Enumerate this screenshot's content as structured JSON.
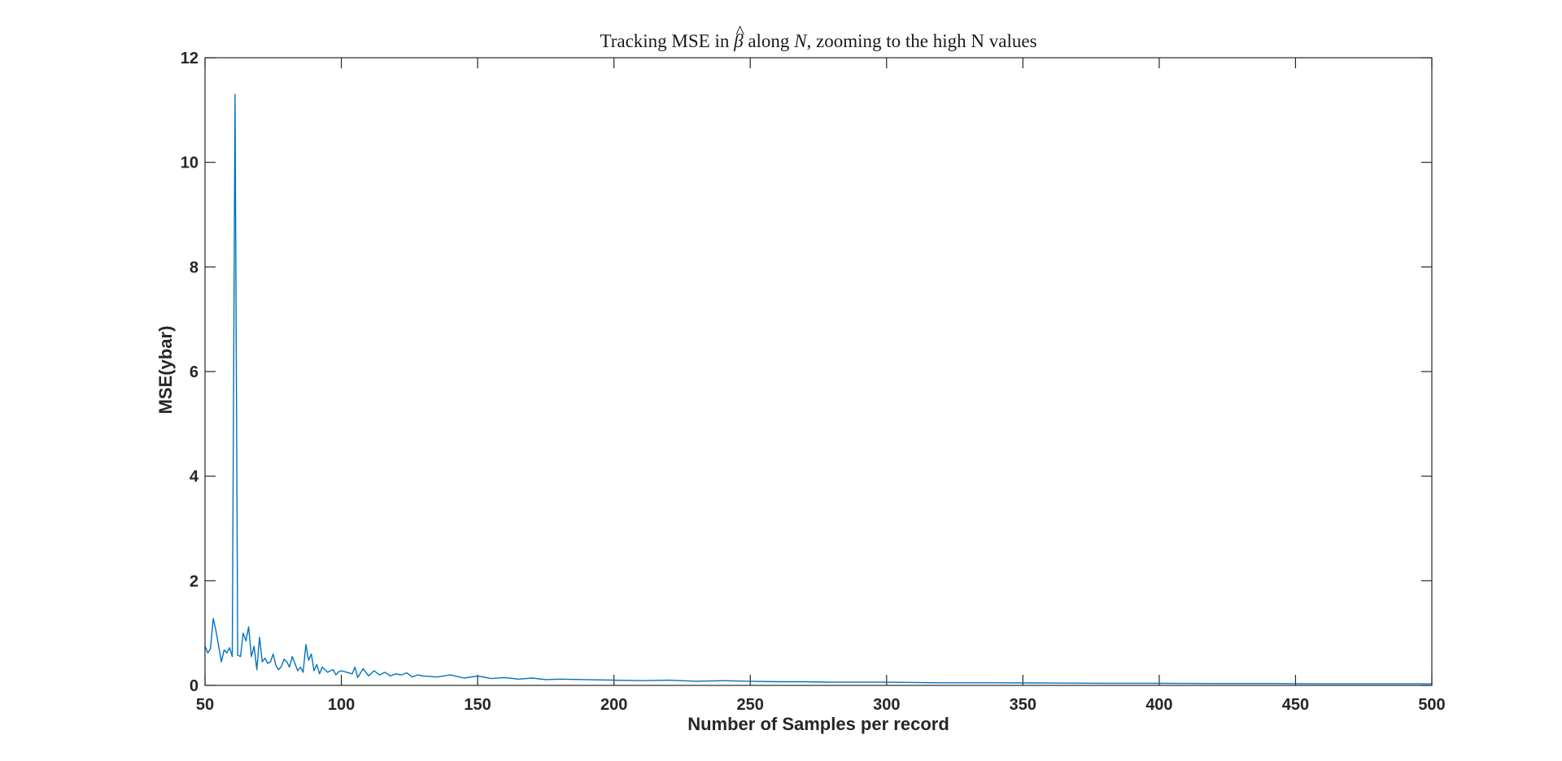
{
  "chart_data": {
    "type": "line",
    "title": "Tracking MSE in β̂ along N, zooming to the high N values",
    "title_parts": {
      "pre": "Tracking MSE in ",
      "beta": "β",
      "hat": "^",
      "mid": " along ",
      "n": "N",
      "post": ", zooming to the high N values"
    },
    "xlabel": "Number of Samples per record",
    "ylabel": "MSE(ybar)",
    "xlim": [
      50,
      500
    ],
    "ylim": [
      0,
      12
    ],
    "xticks": [
      50,
      100,
      150,
      200,
      250,
      300,
      350,
      400,
      450,
      500
    ],
    "yticks": [
      0,
      2,
      4,
      6,
      8,
      10,
      12
    ],
    "grid": false,
    "line_color": "#0072BD",
    "series": [
      {
        "x": [
          50,
          51,
          52,
          53,
          54,
          55,
          56,
          57,
          58,
          59,
          60,
          61,
          62,
          63,
          64,
          65,
          66,
          67,
          68,
          69,
          70,
          71,
          72,
          73,
          74,
          75,
          76,
          77,
          78,
          79,
          80,
          81,
          82,
          83,
          84,
          85,
          86,
          87,
          88,
          89,
          90,
          91,
          92,
          93,
          94,
          95,
          96,
          97,
          98,
          99,
          100,
          102,
          104,
          105,
          106,
          108,
          110,
          112,
          114,
          116,
          118,
          120,
          122,
          124,
          126,
          128,
          130,
          135,
          140,
          145,
          150,
          155,
          160,
          165,
          170,
          175,
          180,
          190,
          200,
          210,
          220,
          230,
          240,
          250,
          260,
          270,
          280,
          290,
          300,
          320,
          340,
          360,
          380,
          400,
          420,
          440,
          460,
          480,
          500
        ],
        "y": [
          0.75,
          0.62,
          0.7,
          1.28,
          1.05,
          0.75,
          0.45,
          0.68,
          0.62,
          0.72,
          0.55,
          11.3,
          0.58,
          0.55,
          1.0,
          0.85,
          1.12,
          0.55,
          0.75,
          0.3,
          0.92,
          0.45,
          0.52,
          0.42,
          0.45,
          0.6,
          0.38,
          0.3,
          0.36,
          0.5,
          0.45,
          0.35,
          0.55,
          0.42,
          0.28,
          0.35,
          0.25,
          0.78,
          0.48,
          0.6,
          0.28,
          0.4,
          0.22,
          0.35,
          0.3,
          0.25,
          0.28,
          0.3,
          0.2,
          0.26,
          0.28,
          0.25,
          0.22,
          0.35,
          0.15,
          0.32,
          0.18,
          0.28,
          0.2,
          0.25,
          0.18,
          0.22,
          0.2,
          0.24,
          0.16,
          0.2,
          0.18,
          0.16,
          0.2,
          0.14,
          0.18,
          0.13,
          0.15,
          0.12,
          0.14,
          0.11,
          0.12,
          0.11,
          0.1,
          0.09,
          0.1,
          0.08,
          0.09,
          0.08,
          0.07,
          0.07,
          0.06,
          0.06,
          0.06,
          0.05,
          0.05,
          0.045,
          0.04,
          0.04,
          0.035,
          0.035,
          0.03,
          0.03,
          0.03
        ]
      }
    ]
  }
}
